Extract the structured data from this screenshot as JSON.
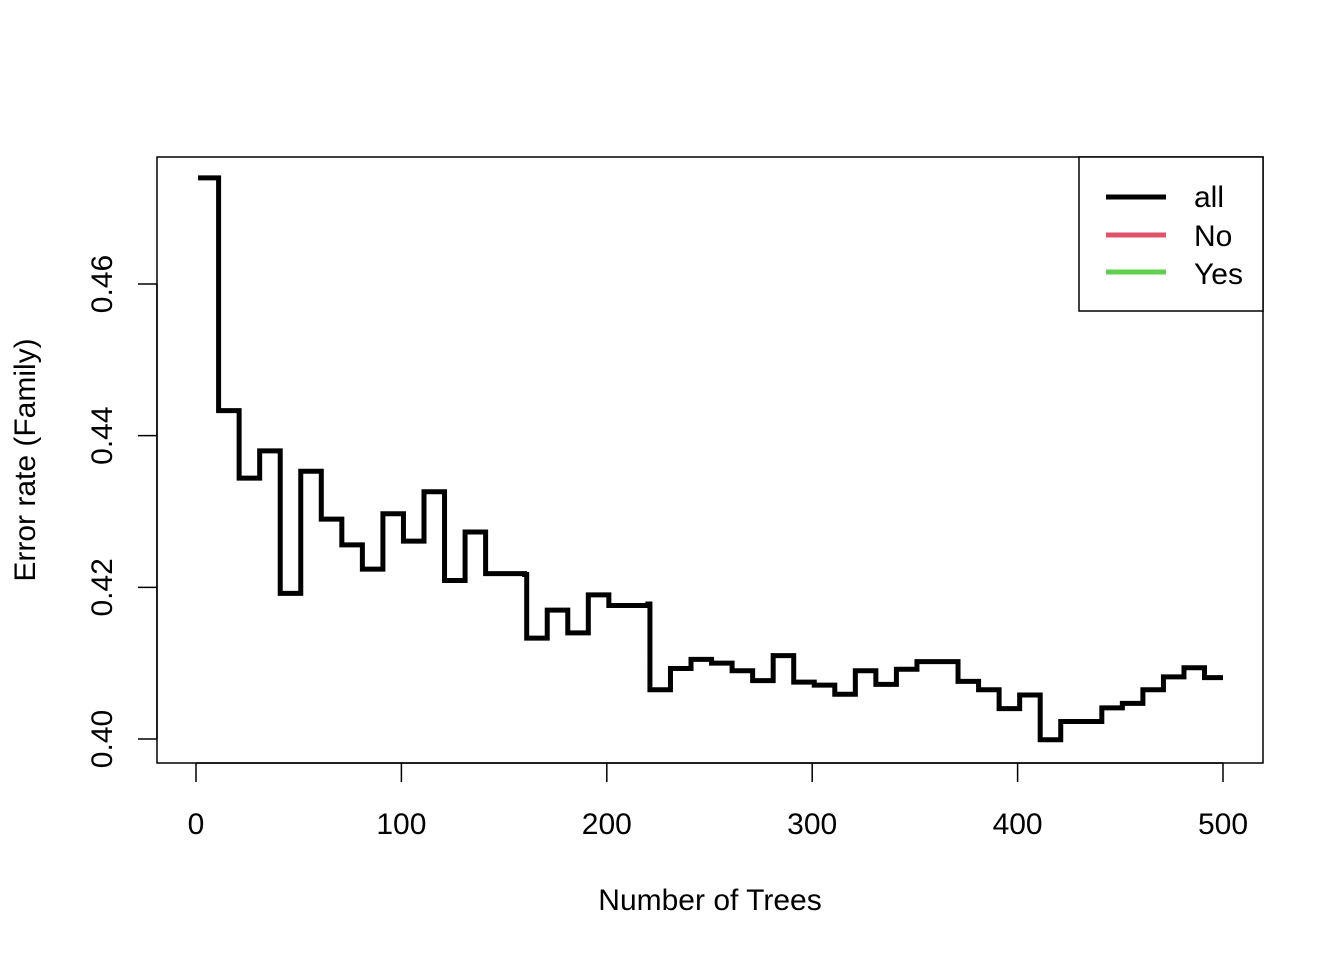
{
  "chart_data": {
    "type": "line",
    "title": "",
    "xlabel": "Number of Trees",
    "ylabel": "Error rate (Family)",
    "xlim": [
      0,
      500
    ],
    "ylim": [
      0.4,
      0.47
    ],
    "x_ticks": [
      0,
      100,
      200,
      300,
      400,
      500
    ],
    "x_tick_labels": [
      "0",
      "100",
      "200",
      "300",
      "400",
      "500"
    ],
    "y_ticks": [
      0.4,
      0.42,
      0.44,
      0.46
    ],
    "y_tick_labels": [
      "0.40",
      "0.42",
      "0.44",
      "0.46"
    ],
    "grid": false,
    "legend": {
      "position": "top-right",
      "entries": [
        {
          "label": "all",
          "color": "#000000"
        },
        {
          "label": "No",
          "color": "#DF536B"
        },
        {
          "label": "Yes",
          "color": "#61D04F"
        }
      ]
    },
    "series": [
      {
        "name": "all",
        "color": "#000000",
        "step": true,
        "x": [
          1,
          10,
          11,
          20,
          21,
          30,
          31,
          40,
          41,
          50,
          51,
          60,
          61,
          70,
          71,
          80,
          81,
          90,
          91,
          100,
          101,
          110,
          111,
          120,
          121,
          130,
          131,
          140,
          141,
          160,
          161,
          170,
          171,
          180,
          181,
          190,
          191,
          200,
          201,
          220,
          221,
          230,
          231,
          240,
          241,
          250,
          251,
          260,
          261,
          270,
          271,
          280,
          281,
          290,
          291,
          300,
          301,
          310,
          311,
          320,
          321,
          330,
          331,
          340,
          341,
          350,
          351,
          370,
          371,
          380,
          381,
          390,
          391,
          400,
          401,
          410,
          411,
          420,
          421,
          440,
          441,
          450,
          451,
          460,
          461,
          470,
          471,
          480,
          481,
          490,
          491,
          500
        ],
        "y": [
          0.474,
          0.474,
          0.4433,
          0.4433,
          0.4344,
          0.4344,
          0.438,
          0.438,
          0.4192,
          0.4192,
          0.4353,
          0.4353,
          0.429,
          0.429,
          0.4256,
          0.4256,
          0.4224,
          0.4224,
          0.4297,
          0.4297,
          0.4261,
          0.4261,
          0.4326,
          0.4326,
          0.4209,
          0.4209,
          0.4273,
          0.4273,
          0.4218,
          0.4217,
          0.4133,
          0.4133,
          0.417,
          0.417,
          0.414,
          0.414,
          0.419,
          0.419,
          0.4176,
          0.4178,
          0.4065,
          0.4065,
          0.4093,
          0.4093,
          0.4105,
          0.4105,
          0.41,
          0.41,
          0.409,
          0.409,
          0.4077,
          0.4077,
          0.411,
          0.411,
          0.4075,
          0.4075,
          0.4071,
          0.4071,
          0.4059,
          0.4059,
          0.409,
          0.409,
          0.4072,
          0.4072,
          0.4092,
          0.4092,
          0.4102,
          0.4102,
          0.4076,
          0.4076,
          0.4065,
          0.4065,
          0.404,
          0.404,
          0.4058,
          0.4058,
          0.3999,
          0.3999,
          0.4023,
          0.4023,
          0.4041,
          0.4041,
          0.4047,
          0.4047,
          0.4065,
          0.4065,
          0.4082,
          0.4082,
          0.4094,
          0.4094,
          0.4081,
          0.4081
        ]
      }
    ]
  }
}
